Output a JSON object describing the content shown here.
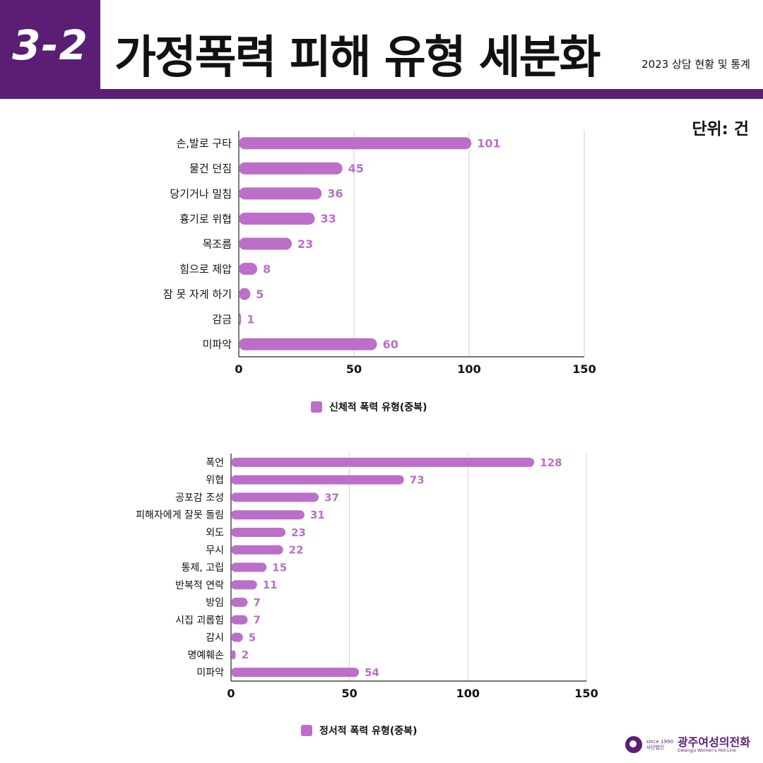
{
  "header": {
    "badge": "3-2",
    "title": "가정폭력 피해 유형 세분화",
    "subtitle": "2023 상담 현황 및 통계",
    "unit": "단위: 건"
  },
  "colors": {
    "accent": "#5a1e74",
    "bar": "#bb6fc9",
    "grid": "#d0d0d0"
  },
  "chart_data": [
    {
      "type": "bar",
      "orientation": "horizontal",
      "categories": [
        "손,발로 구타",
        "물건 던짐",
        "당기거나 밀침",
        "흉기로 위협",
        "목조름",
        "힘으로 제압",
        "잠 못 자게 하기",
        "감금",
        "미파악"
      ],
      "series": [
        {
          "name": "신체적 폭력 유형(중복)",
          "values": [
            101,
            45,
            36,
            33,
            23,
            8,
            5,
            1,
            60
          ]
        }
      ],
      "xlim": [
        0,
        150
      ],
      "xticks": [
        0,
        50,
        100,
        150
      ],
      "grid": true,
      "legend_position": "bottom"
    },
    {
      "type": "bar",
      "orientation": "horizontal",
      "categories": [
        "폭언",
        "위협",
        "공포감 조성",
        "피해자에게 잘못 돌림",
        "외도",
        "무시",
        "통제, 고립",
        "반복적 연락",
        "방임",
        "시집 괴롭힘",
        "감시",
        "명예훼손",
        "미파악"
      ],
      "series": [
        {
          "name": "정서적 폭력 유형(중복)",
          "values": [
            128,
            73,
            37,
            31,
            23,
            22,
            15,
            11,
            7,
            7,
            5,
            2,
            54
          ]
        }
      ],
      "xlim": [
        0,
        150
      ],
      "xticks": [
        0,
        50,
        100,
        150
      ],
      "grid": true,
      "legend_position": "bottom"
    }
  ],
  "footer": {
    "since": "since 1990",
    "org_type": "사단법인",
    "org_name": "광주여성의전화",
    "org_en": "Gwangju Women's Hot-Line"
  }
}
